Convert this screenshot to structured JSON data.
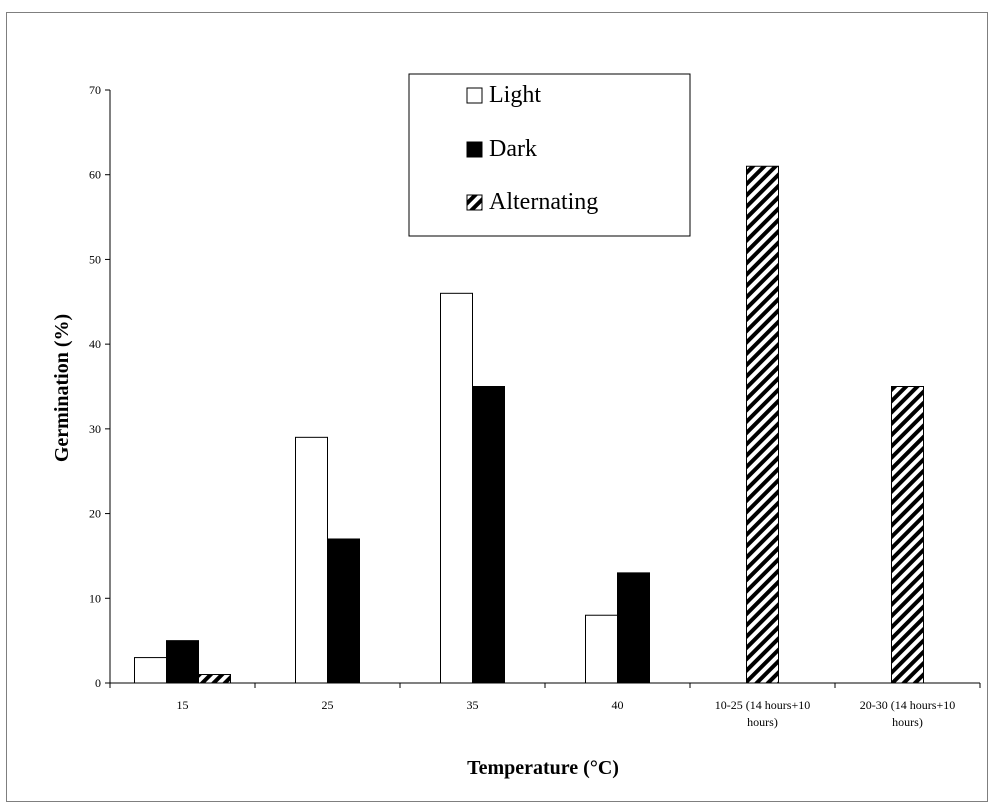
{
  "chart_data": {
    "type": "bar",
    "title": "",
    "xlabel": "Temperature (°C)",
    "ylabel": "Germination (%)",
    "ylim": [
      0,
      70
    ],
    "yticks": [
      0,
      10,
      20,
      30,
      40,
      50,
      60,
      70
    ],
    "grid": false,
    "legend_position": "top-center",
    "categories": [
      [
        "15"
      ],
      [
        "25"
      ],
      [
        "35"
      ],
      [
        "40"
      ],
      [
        "10-25 (14 hours+10",
        "hours)"
      ],
      [
        "20-30 (14 hours+10",
        "hours)"
      ]
    ],
    "series": [
      {
        "name": "Light",
        "style": "white",
        "values": [
          3,
          29,
          46,
          8,
          null,
          null
        ]
      },
      {
        "name": "Dark",
        "style": "black",
        "values": [
          5,
          17,
          35,
          13,
          null,
          null
        ]
      },
      {
        "name": "Alternating",
        "style": "hatched",
        "values": [
          1,
          null,
          null,
          null,
          61,
          35
        ]
      }
    ],
    "colors": {
      "axis": "#000000",
      "frame": "#7f7f7f",
      "light_fill": "#ffffff",
      "dark_fill": "#000000",
      "hatch": "#000000"
    }
  }
}
